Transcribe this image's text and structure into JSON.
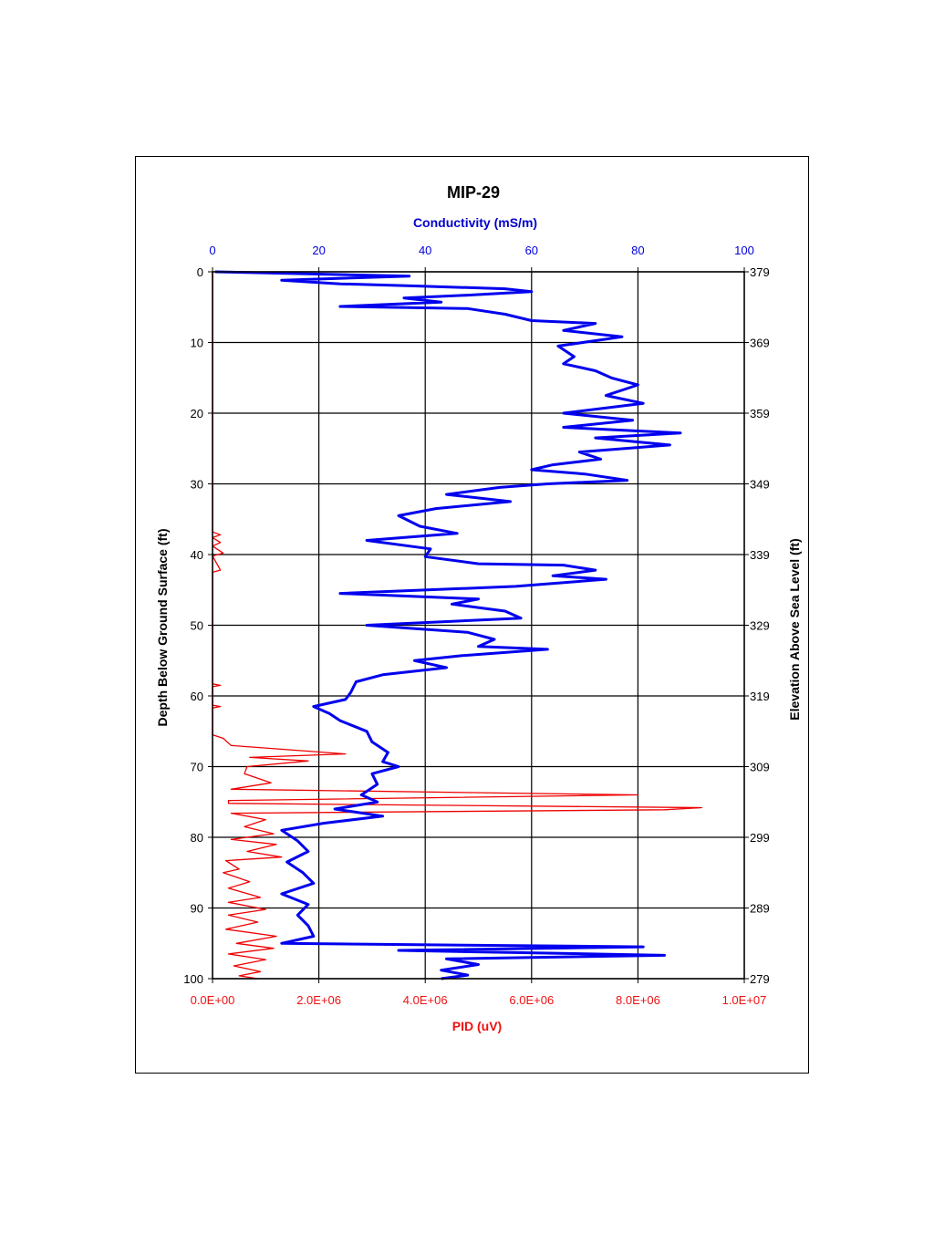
{
  "chart_data": {
    "type": "line",
    "title": "MIP-29",
    "orientation": "depth-profile (value on x-axis, depth on y-axis increasing downward)",
    "y_axis_left": {
      "label": "Depth Below Ground Surface (ft)",
      "range": [
        0,
        100
      ],
      "inverted": true,
      "ticks": [
        "0",
        "10",
        "20",
        "30",
        "40",
        "50",
        "60",
        "70",
        "80",
        "90",
        "100"
      ]
    },
    "y_axis_right": {
      "label": "Elevation Above Sea Level (ft)",
      "range": [
        379,
        279
      ],
      "ticks": [
        "379",
        "369",
        "359",
        "349",
        "339",
        "329",
        "319",
        "309",
        "299",
        "289",
        "279"
      ]
    },
    "x_axis_top": {
      "label": "Conductivity (mS/m)",
      "range": [
        0,
        100
      ],
      "ticks": [
        "0",
        "20",
        "40",
        "60",
        "80",
        "100"
      ],
      "color": "#0000dd"
    },
    "x_axis_bottom": {
      "label": "PID (uV)",
      "range": [
        0,
        10000000
      ],
      "ticks": [
        "0.0E+00",
        "2.0E+06",
        "4.0E+06",
        "6.0E+06",
        "8.0E+06",
        "1.0E+07"
      ],
      "color": "#ee1111"
    },
    "grid": true,
    "series": [
      {
        "name": "Conductivity (mS/m)",
        "axis": "top",
        "color": "#0000ee",
        "points": [
          [
            0.5,
            0
          ],
          [
            37,
            0.6
          ],
          [
            13,
            1.2
          ],
          [
            24,
            1.7
          ],
          [
            38,
            2
          ],
          [
            55,
            2.4
          ],
          [
            60,
            2.8
          ],
          [
            48,
            3.3
          ],
          [
            36,
            3.7
          ],
          [
            43,
            4.3
          ],
          [
            24,
            4.9
          ],
          [
            48,
            5.2
          ],
          [
            55,
            6
          ],
          [
            60,
            6.9
          ],
          [
            72,
            7.3
          ],
          [
            66,
            8.3
          ],
          [
            77,
            9.2
          ],
          [
            65,
            10.5
          ],
          [
            68,
            12
          ],
          [
            66,
            13
          ],
          [
            72,
            14
          ],
          [
            75,
            15
          ],
          [
            80,
            16
          ],
          [
            74,
            17.5
          ],
          [
            81,
            18.6
          ],
          [
            66,
            20
          ],
          [
            79,
            21
          ],
          [
            66,
            22
          ],
          [
            88,
            22.8
          ],
          [
            72,
            23.5
          ],
          [
            86,
            24.5
          ],
          [
            69,
            25.5
          ],
          [
            73,
            26.5
          ],
          [
            64,
            27.3
          ],
          [
            60,
            28
          ],
          [
            70,
            28.6
          ],
          [
            78,
            29.5
          ],
          [
            63,
            30
          ],
          [
            54,
            30.5
          ],
          [
            44,
            31.5
          ],
          [
            56,
            32.5
          ],
          [
            42,
            33.5
          ],
          [
            35,
            34.5
          ],
          [
            39,
            36
          ],
          [
            46,
            37
          ],
          [
            29,
            38
          ],
          [
            41,
            39.2
          ],
          [
            40,
            40.3
          ],
          [
            50,
            41.3
          ],
          [
            66,
            41.5
          ],
          [
            72,
            42.2
          ],
          [
            64,
            43
          ],
          [
            74,
            43.5
          ],
          [
            57,
            44.5
          ],
          [
            24,
            45.5
          ],
          [
            50,
            46.3
          ],
          [
            45,
            47
          ],
          [
            55,
            48
          ],
          [
            58,
            49
          ],
          [
            29,
            50
          ],
          [
            48,
            51
          ],
          [
            53,
            52
          ],
          [
            50,
            53
          ],
          [
            63,
            53.4
          ],
          [
            47,
            54.3
          ],
          [
            38,
            55
          ],
          [
            44,
            56
          ],
          [
            32,
            57
          ],
          [
            27,
            58
          ],
          [
            26,
            59.5
          ],
          [
            25,
            60.5
          ],
          [
            19,
            61.5
          ],
          [
            22,
            62.5
          ],
          [
            24,
            63.5
          ],
          [
            29,
            65
          ],
          [
            30,
            66.5
          ],
          [
            33,
            68
          ],
          [
            32,
            69.3
          ],
          [
            35,
            70
          ],
          [
            30,
            71
          ],
          [
            31,
            72.5
          ],
          [
            28,
            74
          ],
          [
            31,
            75
          ],
          [
            23,
            76
          ],
          [
            32,
            77
          ],
          [
            21,
            78
          ],
          [
            13,
            79
          ],
          [
            16,
            80.5
          ],
          [
            18,
            82
          ],
          [
            14,
            83.5
          ],
          [
            17,
            85
          ],
          [
            19,
            86.5
          ],
          [
            13,
            88
          ],
          [
            18,
            89.5
          ],
          [
            16,
            91
          ],
          [
            18,
            92.5
          ],
          [
            19,
            94
          ],
          [
            13,
            95
          ],
          [
            81,
            95.5
          ],
          [
            35,
            96
          ],
          [
            85,
            96.7
          ],
          [
            44,
            97.2
          ],
          [
            50,
            98
          ],
          [
            43,
            98.8
          ],
          [
            48,
            99.5
          ],
          [
            43,
            100
          ]
        ]
      },
      {
        "name": "PID (uV)",
        "axis": "bottom",
        "color": "#ee0000",
        "points": [
          [
            0,
            0
          ],
          [
            0,
            36.8
          ],
          [
            150000,
            37.2
          ],
          [
            0,
            37.6
          ],
          [
            150000,
            38.3
          ],
          [
            0,
            38.8
          ],
          [
            200000,
            39.8
          ],
          [
            0,
            40.2
          ],
          [
            150000,
            42.2
          ],
          [
            0,
            42.5
          ],
          [
            0,
            58.3
          ],
          [
            150000,
            58.5
          ],
          [
            0,
            58.7
          ],
          [
            0,
            61.3
          ],
          [
            150000,
            61.5
          ],
          [
            0,
            61.7
          ],
          [
            0,
            65.5
          ],
          [
            200000,
            66
          ],
          [
            350000,
            67
          ],
          [
            2500000,
            68.2
          ],
          [
            700000,
            68.7
          ],
          [
            1800000,
            69.2
          ],
          [
            650000,
            70
          ],
          [
            600000,
            71
          ],
          [
            1100000,
            72.3
          ],
          [
            350000,
            73.2
          ],
          [
            8000000,
            74
          ],
          [
            300000,
            74.8
          ],
          [
            300000,
            75.2
          ],
          [
            9200000,
            75.8
          ],
          [
            8500000,
            76.1
          ],
          [
            350000,
            76.6
          ],
          [
            1000000,
            77.5
          ],
          [
            600000,
            78.5
          ],
          [
            1150000,
            79.5
          ],
          [
            350000,
            80.3
          ],
          [
            1200000,
            81
          ],
          [
            650000,
            82
          ],
          [
            1300000,
            82.8
          ],
          [
            250000,
            83.3
          ],
          [
            500000,
            84.5
          ],
          [
            200000,
            85
          ],
          [
            700000,
            86.3
          ],
          [
            300000,
            87.2
          ],
          [
            900000,
            88.5
          ],
          [
            300000,
            89.2
          ],
          [
            1000000,
            90.2
          ],
          [
            300000,
            91
          ],
          [
            850000,
            92
          ],
          [
            250000,
            93
          ],
          [
            1200000,
            94
          ],
          [
            450000,
            95
          ],
          [
            1150000,
            95.7
          ],
          [
            300000,
            96.5
          ],
          [
            1000000,
            97.3
          ],
          [
            400000,
            98.2
          ],
          [
            900000,
            99
          ],
          [
            500000,
            99.6
          ],
          [
            850000,
            100
          ]
        ]
      }
    ]
  }
}
